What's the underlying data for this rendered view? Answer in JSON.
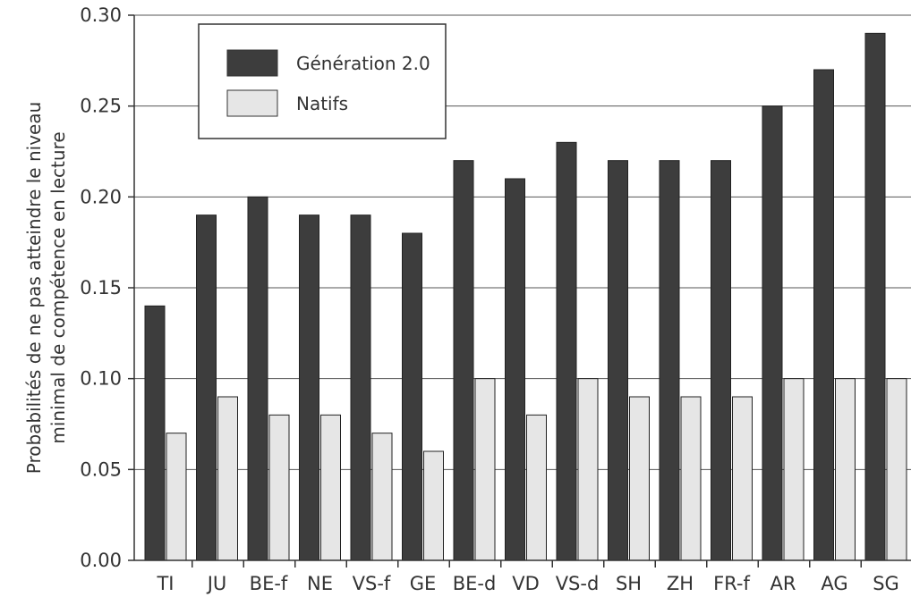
{
  "chart_data": {
    "type": "bar",
    "title": "",
    "xlabel": "",
    "ylabel": "Probabilités de ne pas atteindre le niveau minimal de compétence en lecture",
    "ylabel_lines": [
      "Probabilités de ne pas atteindre le niveau",
      "minimal de compétence en lecture"
    ],
    "categories": [
      "TI",
      "JU",
      "BE-f",
      "NE",
      "VS-f",
      "GE",
      "BE-d",
      "VD",
      "VS-d",
      "SH",
      "ZH",
      "FR-f",
      "AR",
      "AG",
      "SG"
    ],
    "series": [
      {
        "name": "Génération 2.0",
        "color": "#3d3d3d",
        "values": [
          0.14,
          0.19,
          0.2,
          0.19,
          0.19,
          0.18,
          0.22,
          0.21,
          0.23,
          0.22,
          0.22,
          0.22,
          0.25,
          0.27,
          0.29
        ]
      },
      {
        "name": "Natifs",
        "color": "#e6e6e6",
        "values": [
          0.07,
          0.09,
          0.08,
          0.08,
          0.07,
          0.06,
          0.1,
          0.08,
          0.1,
          0.09,
          0.09,
          0.09,
          0.1,
          0.1,
          0.1
        ]
      }
    ],
    "ylim": [
      0.0,
      0.3
    ],
    "yticks": [
      "0.00",
      "0.05",
      "0.10",
      "0.15",
      "0.20",
      "0.25",
      "0.30"
    ],
    "grid": true,
    "legend_position": "top-left"
  }
}
